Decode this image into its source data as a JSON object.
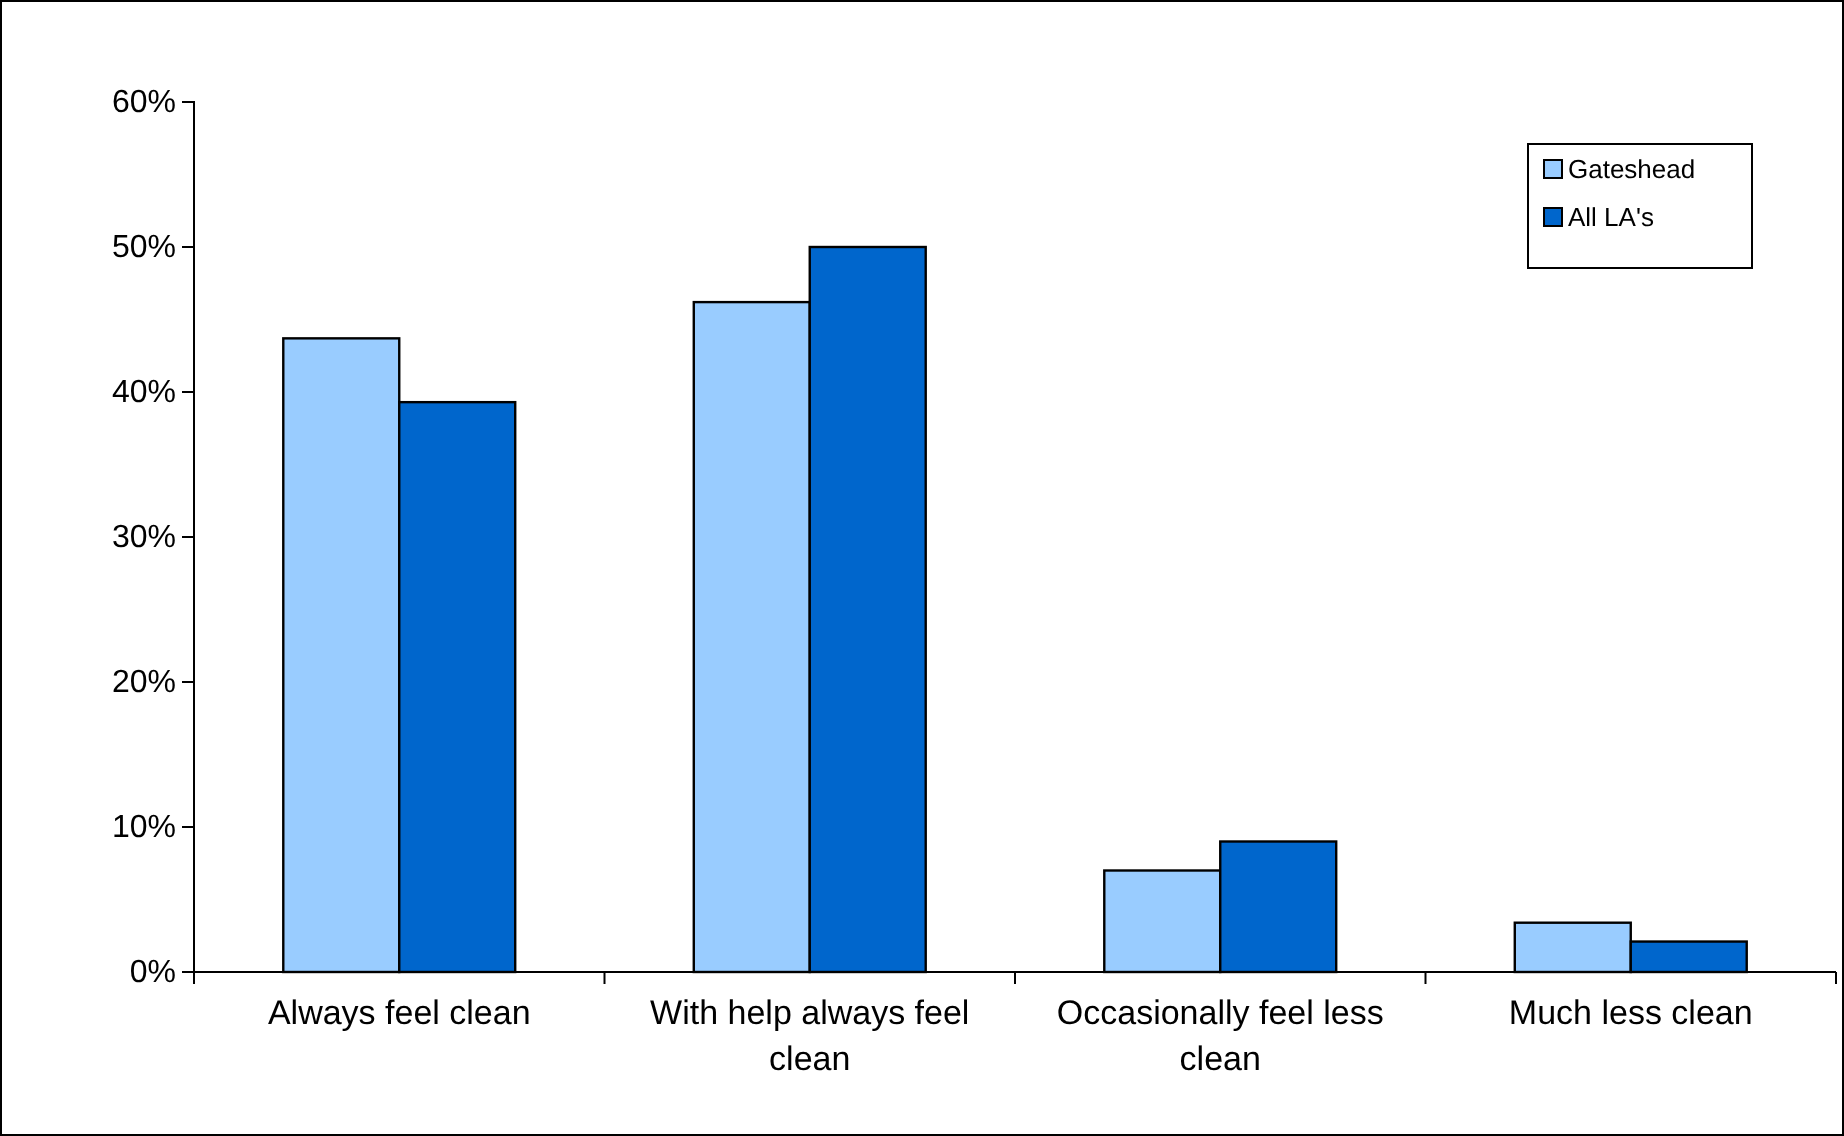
{
  "chart_data": {
    "type": "bar",
    "categories": [
      "Always feel clean",
      "With help always feel clean",
      "Occasionally feel less clean",
      "Much less clean"
    ],
    "series": [
      {
        "name": "Gateshead",
        "color": "#99ccff",
        "values": [
          43.7,
          46.2,
          7,
          3.4
        ]
      },
      {
        "name": "All LA's",
        "color": "#0066cc",
        "values": [
          39.3,
          50,
          9,
          2.1
        ]
      }
    ],
    "ylim": [
      0,
      60
    ],
    "yticks": [
      {
        "value": 0,
        "label": "0%"
      },
      {
        "value": 10,
        "label": "10%"
      },
      {
        "value": 20,
        "label": "20%"
      },
      {
        "value": 30,
        "label": "30%"
      },
      {
        "value": 40,
        "label": "40%"
      },
      {
        "value": 50,
        "label": "50%"
      },
      {
        "value": 60,
        "label": "60%"
      }
    ],
    "grid": false,
    "legend": "top right"
  }
}
